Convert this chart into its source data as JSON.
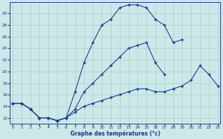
{
  "xlabel": "Graphe des températures (°c)",
  "hours": [
    0,
    1,
    2,
    3,
    4,
    5,
    6,
    7,
    8,
    9,
    10,
    11,
    12,
    13,
    14,
    15,
    16,
    17,
    18,
    19,
    20,
    21,
    22,
    23
  ],
  "line_max": [
    14.5,
    14.5,
    13.5,
    12.0,
    12.0,
    11.5,
    12.0,
    16.5,
    21.5,
    25.0,
    28.0,
    29.0,
    31.0,
    31.5,
    31.5,
    31.0,
    29.0,
    28.0,
    25.0,
    25.5,
    null,
    null,
    null,
    null
  ],
  "line_mid": [
    14.5,
    14.5,
    13.5,
    12.0,
    12.0,
    11.5,
    12.0,
    13.5,
    16.5,
    18.0,
    19.5,
    21.0,
    22.5,
    24.0,
    24.5,
    25.0,
    21.5,
    19.5,
    null,
    null,
    null,
    null,
    null,
    null
  ],
  "line_min": [
    14.5,
    14.5,
    13.5,
    12.0,
    12.0,
    11.5,
    12.0,
    13.0,
    14.0,
    14.5,
    15.0,
    15.5,
    16.0,
    16.5,
    17.0,
    17.0,
    16.5,
    16.5,
    17.0,
    17.5,
    18.5,
    21.0,
    19.5,
    17.5
  ],
  "line_color": "#1a3a8a",
  "bg_color": "#cce8e8",
  "grid_color": "#aacccc",
  "ylim": [
    11.0,
    32.0
  ],
  "yticks": [
    12,
    14,
    16,
    18,
    20,
    22,
    24,
    26,
    28,
    30
  ],
  "xlim": [
    -0.3,
    23.3
  ],
  "xticks": [
    0,
    1,
    2,
    3,
    4,
    5,
    6,
    7,
    8,
    9,
    10,
    11,
    12,
    13,
    14,
    15,
    16,
    17,
    18,
    19,
    20,
    21,
    22,
    23
  ]
}
